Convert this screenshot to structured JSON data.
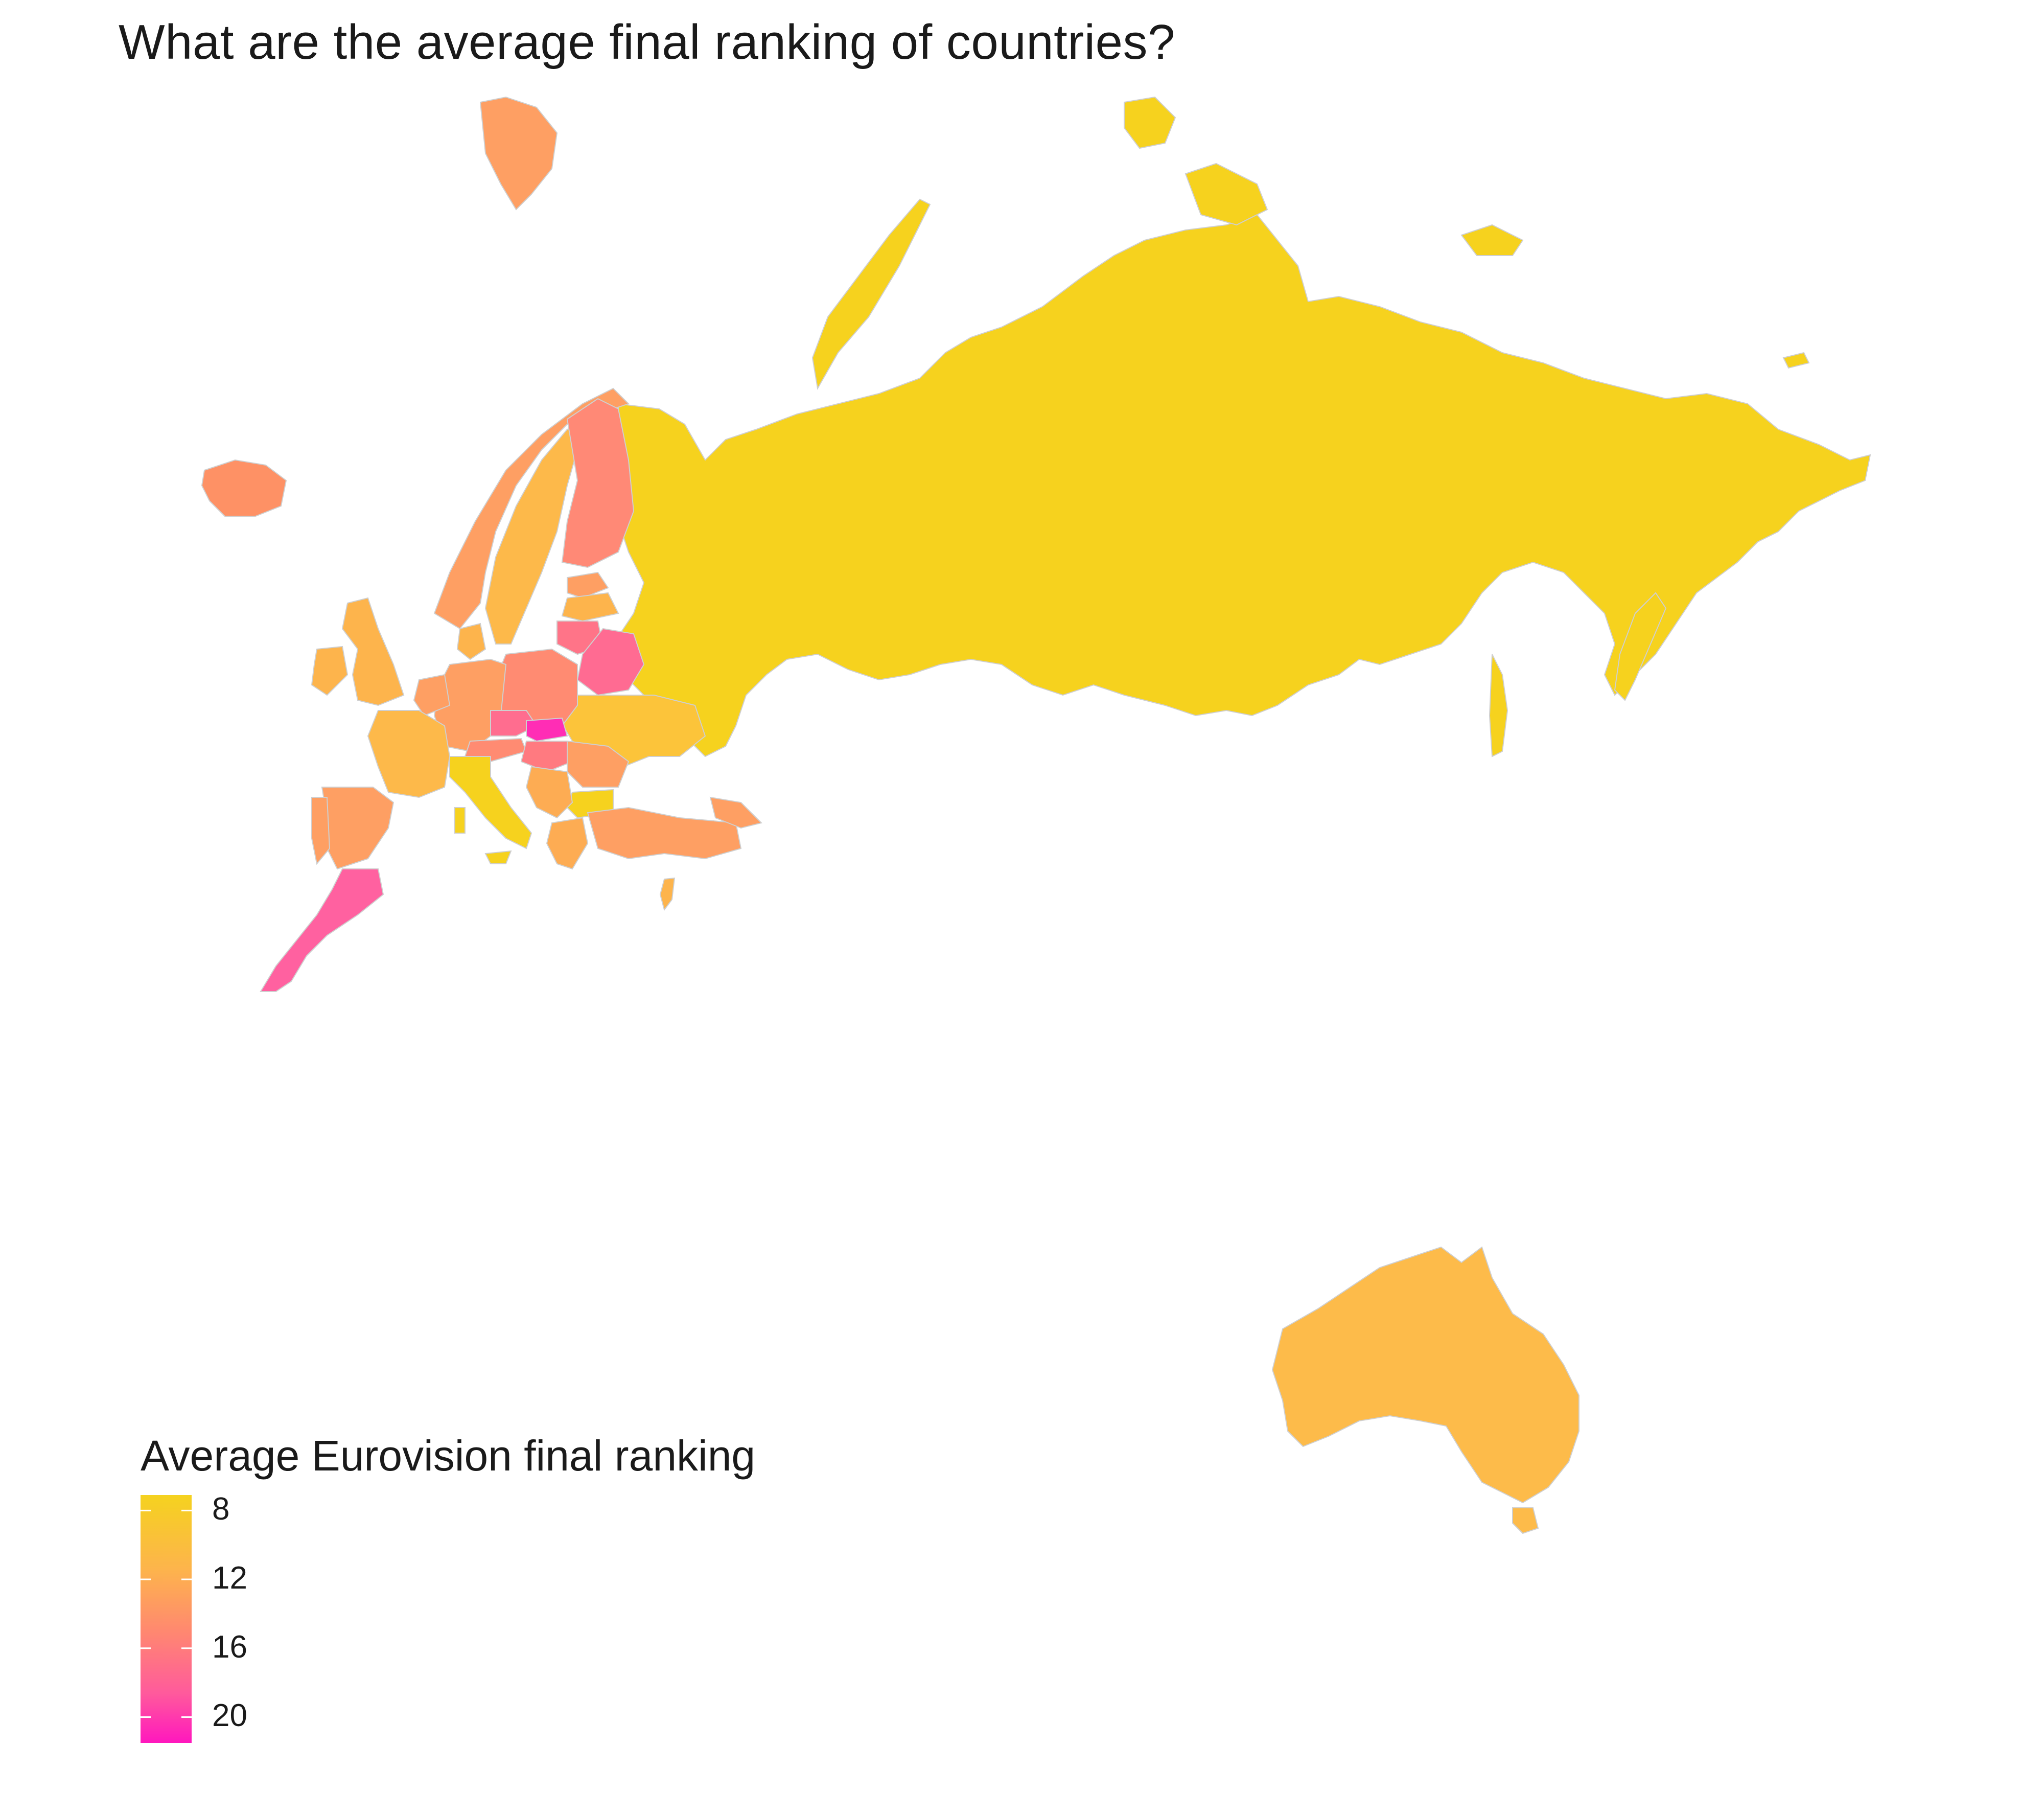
{
  "title": "What are the average final ranking of countries?",
  "legend": {
    "title": "Average Eurovision final ranking",
    "ticks": [
      8,
      12,
      16,
      20
    ],
    "min": 7.1,
    "max": 21.5,
    "colors": [
      "#f5d21f",
      "#fdb44c",
      "#ff8870",
      "#ff5a9c",
      "#ff17be"
    ]
  },
  "map_data": {
    "type": "choropleth",
    "measure": "Average Eurovision final ranking",
    "regions": [
      {
        "name": "Russia",
        "value": 7.5
      },
      {
        "name": "Australia",
        "value": 10.5
      },
      {
        "name": "Italy",
        "value": 7.2
      },
      {
        "name": "Bulgaria",
        "value": 7.8
      },
      {
        "name": "Ukraine",
        "value": 9.5
      },
      {
        "name": "Sweden",
        "value": 10.0
      },
      {
        "name": "Norway",
        "value": 12.5
      },
      {
        "name": "Finland",
        "value": 14.5
      },
      {
        "name": "Iceland",
        "value": 13.0
      },
      {
        "name": "Svalbard",
        "value": 12.5
      },
      {
        "name": "United Kingdom",
        "value": 11.5
      },
      {
        "name": "Ireland",
        "value": 11.5
      },
      {
        "name": "France",
        "value": 11.0
      },
      {
        "name": "Spain",
        "value": 13.0
      },
      {
        "name": "Portugal",
        "value": 13.0
      },
      {
        "name": "Germany",
        "value": 12.5
      },
      {
        "name": "Poland",
        "value": 14.0
      },
      {
        "name": "Czech Republic",
        "value": 16.0
      },
      {
        "name": "Slovakia",
        "value": 21.0
      },
      {
        "name": "Hungary",
        "value": 15.0
      },
      {
        "name": "Austria",
        "value": 13.0
      },
      {
        "name": "Romania",
        "value": 12.5
      },
      {
        "name": "Belarus",
        "value": 16.5
      },
      {
        "name": "Lithuania",
        "value": 15.5
      },
      {
        "name": "Latvia",
        "value": 12.0
      },
      {
        "name": "Estonia",
        "value": 12.5
      },
      {
        "name": "Turkey",
        "value": 12.5
      },
      {
        "name": "Greece",
        "value": 12.0
      },
      {
        "name": "Morocco",
        "value": 18.0
      },
      {
        "name": "Denmark",
        "value": 11.5
      },
      {
        "name": "Netherlands",
        "value": 12.5
      },
      {
        "name": "Serbia",
        "value": 12.0
      },
      {
        "name": "Georgia",
        "value": 12.5
      }
    ]
  }
}
